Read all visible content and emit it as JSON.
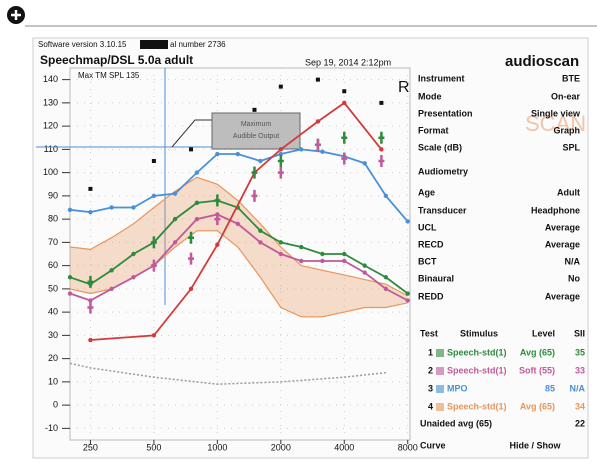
{
  "header": {
    "software": "Software version 3.10.15",
    "serial": "al number 2736",
    "title": "Speechmap/DSL 5.0a adult",
    "max_tm": "Max TM SPL 135",
    "date": "Sep 19, 2014 2:12pm",
    "brand": "audioscan",
    "ear": "R",
    "watermark": "SCAN"
  },
  "chart_data": {
    "type": "line",
    "xlog": true,
    "grid": true,
    "annotation": [
      "Maximum",
      "Audible Output"
    ],
    "xlim": [
      200,
      8200
    ],
    "xticks": [
      250,
      500,
      1000,
      2000,
      4000,
      8000
    ],
    "ylim": [
      -15,
      145
    ],
    "yticks": [
      140,
      130,
      120,
      110,
      100,
      90,
      80,
      70,
      60,
      50,
      40,
      30,
      20,
      10,
      0,
      -10
    ],
    "series": [
      {
        "style": "band",
        "color": "#e8955a",
        "x": [
          200,
          250,
          315,
          400,
          500,
          630,
          800,
          1000,
          1250,
          1600,
          2000,
          2500,
          3150,
          4000,
          5000,
          6300,
          8000
        ],
        "values": [
          68,
          67,
          72,
          78,
          85,
          92,
          98,
          95,
          88,
          78,
          68,
          60,
          58,
          56,
          54,
          52,
          47
        ],
        "lower": [
          50,
          48,
          50,
          55,
          60,
          68,
          75,
          75,
          68,
          55,
          42,
          38,
          38,
          40,
          42,
          42,
          44
        ]
      },
      {
        "style": "dots",
        "color": "#999999",
        "x": [
          200,
          250,
          500,
          1000,
          2000,
          4000,
          6300
        ],
        "values": [
          18,
          16,
          12,
          9,
          10,
          12,
          14
        ]
      },
      {
        "style": "line",
        "color": "#c05a9a",
        "x": [
          200,
          250,
          315,
          400,
          500,
          630,
          800,
          1000,
          1250,
          1600,
          2000,
          2500,
          3150,
          4000,
          5000,
          6300,
          8000
        ],
        "values": [
          48,
          45,
          50,
          55,
          60,
          70,
          80,
          82,
          78,
          70,
          65,
          62,
          62,
          62,
          57,
          50,
          45
        ]
      },
      {
        "style": "line",
        "color": "#2e8b3e",
        "x": [
          200,
          250,
          315,
          400,
          500,
          630,
          800,
          1000,
          1250,
          1600,
          2000,
          2500,
          3150,
          4000,
          5000,
          6300,
          8000
        ],
        "values": [
          55,
          52,
          58,
          65,
          70,
          80,
          87,
          88,
          85,
          75,
          70,
          68,
          65,
          65,
          60,
          55,
          48
        ]
      },
      {
        "style": "line",
        "color": "#4a90d9",
        "x": [
          200,
          250,
          315,
          400,
          500,
          630,
          800,
          1000,
          1250,
          1600,
          2000,
          2500,
          3150,
          4000,
          5000,
          6300,
          8000
        ],
        "values": [
          84,
          83,
          85,
          85,
          90,
          91,
          100,
          108,
          108,
          105,
          108,
          110,
          109,
          107,
          104,
          90,
          79
        ]
      },
      {
        "style": "line",
        "color": "#d23b3b",
        "x": [
          250,
          500,
          750,
          1000,
          1500,
          2000,
          3000,
          4000,
          6000
        ],
        "values": [
          28,
          30,
          50,
          69,
          100,
          110,
          122,
          130,
          110
        ]
      },
      {
        "style": "cross",
        "color": "#2e8b3e",
        "x": [
          250,
          500,
          750,
          1000,
          1500,
          2000,
          3000,
          4000,
          6000
        ],
        "values": [
          53,
          70,
          72,
          88,
          100,
          105,
          112,
          115,
          115
        ]
      },
      {
        "style": "cross",
        "color": "#c05a9a",
        "x": [
          250,
          500,
          750,
          1000,
          1500,
          2000,
          3000,
          4000,
          6000
        ],
        "values": [
          42,
          60,
          63,
          80,
          90,
          100,
          112,
          106,
          105
        ]
      },
      {
        "style": "square",
        "color": "#111111",
        "x": [
          250,
          500,
          750,
          1500,
          2000,
          3000,
          4000,
          6000
        ],
        "values": [
          93,
          105,
          110,
          127,
          137,
          140,
          135,
          130
        ]
      }
    ]
  },
  "settings": [
    {
      "label": "Instrument",
      "value": "BTE"
    },
    {
      "label": "Mode",
      "value": "On-ear"
    },
    {
      "label": "Presentation",
      "value": "Single view"
    },
    {
      "label": "Format",
      "value": "Graph"
    },
    {
      "label": "Scale (dB)",
      "value": "SPL"
    },
    {
      "label": "Audiometry",
      "value": ""
    },
    {
      "label": "Age",
      "value": "Adult"
    },
    {
      "label": "Transducer",
      "value": "Headphone"
    },
    {
      "label": "UCL",
      "value": "Average"
    },
    {
      "label": "RECD",
      "value": "Average"
    },
    {
      "label": "BCT",
      "value": "N/A"
    },
    {
      "label": "Binaural",
      "value": "No"
    },
    {
      "label": "REDD",
      "value": "Average"
    }
  ],
  "legend_table": {
    "header": [
      "Test",
      "Stimulus",
      "Level",
      "SII"
    ],
    "rows": [
      {
        "test": "1",
        "color": "#2e8b3e",
        "stimulus": "Speech-std(1)",
        "level": "Avg (65)",
        "sii": "35"
      },
      {
        "test": "2",
        "color": "#c05a9a",
        "stimulus": "Speech-std(1)",
        "level": "Soft (55)",
        "sii": "33"
      },
      {
        "test": "3",
        "color": "#4a90d9",
        "stimulus": "MPO",
        "level": "85",
        "sii": "N/A"
      },
      {
        "test": "4",
        "color": "#e8955a",
        "stimulus": "Speech-std(1)",
        "level": "Avg (65)",
        "sii": "34"
      }
    ],
    "unaided": {
      "label": "Unaided avg (65)",
      "value": "22"
    },
    "curve": {
      "label": "Curve",
      "value": "Hide / Show"
    }
  }
}
